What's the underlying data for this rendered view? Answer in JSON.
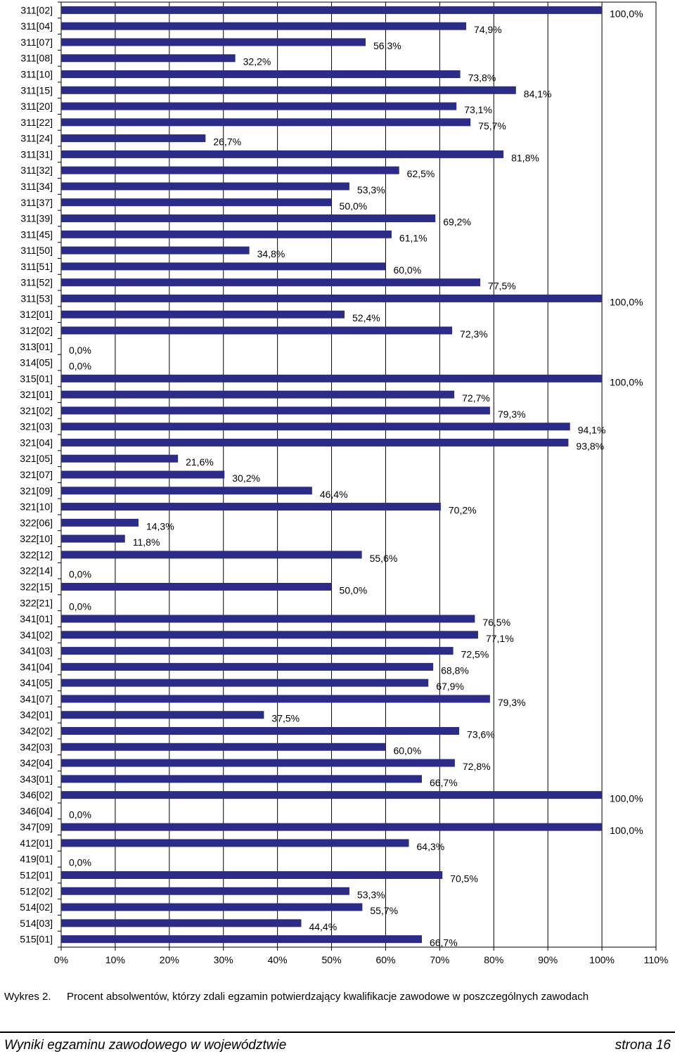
{
  "chart_data": {
    "type": "bar",
    "orientation": "horizontal",
    "categories": [
      "311[02]",
      "311[04]",
      "311[07]",
      "311[08]",
      "311[10]",
      "311[15]",
      "311[20]",
      "311[22]",
      "311[24]",
      "311[31]",
      "311[32]",
      "311[34]",
      "311[37]",
      "311[39]",
      "311[45]",
      "311[50]",
      "311[51]",
      "311[52]",
      "311[53]",
      "312[01]",
      "312[02]",
      "313[01]",
      "314[05]",
      "315[01]",
      "321[01]",
      "321[02]",
      "321[03]",
      "321[04]",
      "321[05]",
      "321[07]",
      "321[09]",
      "321[10]",
      "322[06]",
      "322[10]",
      "322[12]",
      "322[14]",
      "322[15]",
      "322[21]",
      "341[01]",
      "341[02]",
      "341[03]",
      "341[04]",
      "341[05]",
      "341[07]",
      "342[01]",
      "342[02]",
      "342[03]",
      "342[04]",
      "343[01]",
      "346[02]",
      "346[04]",
      "347[09]",
      "412[01]",
      "419[01]",
      "512[01]",
      "512[02]",
      "514[02]",
      "514[03]",
      "515[01]"
    ],
    "values": [
      100.0,
      74.9,
      56.3,
      32.2,
      73.8,
      84.1,
      73.1,
      75.7,
      26.7,
      81.8,
      62.5,
      53.3,
      50.0,
      69.2,
      61.1,
      34.8,
      60.0,
      77.5,
      100.0,
      52.4,
      72.3,
      0.0,
      0.0,
      100.0,
      72.7,
      79.3,
      94.1,
      93.8,
      21.6,
      30.2,
      46.4,
      70.2,
      14.3,
      11.8,
      55.6,
      0.0,
      50.0,
      0.0,
      76.5,
      77.1,
      72.5,
      68.8,
      67.9,
      79.3,
      37.5,
      73.6,
      60.0,
      72.8,
      66.7,
      100.0,
      0.0,
      100.0,
      64.3,
      0.0,
      70.5,
      53.3,
      55.7,
      44.4,
      66.7
    ],
    "data_labels": [
      "100,0%",
      "74,9%",
      "56,3%",
      "32,2%",
      "73,8%",
      "84,1%",
      "73,1%",
      "75,7%",
      "26,7%",
      "81,8%",
      "62,5%",
      "53,3%",
      "50,0%",
      "69,2%",
      "61,1%",
      "34,8%",
      "60,0%",
      "77,5%",
      "100,0%",
      "52,4%",
      "72,3%",
      "0,0%",
      "0,0%",
      "100,0%",
      "72,7%",
      "79,3%",
      "94,1%",
      "93,8%",
      "21,6%",
      "30,2%",
      "46,4%",
      "70,2%",
      "14,3%",
      "11,8%",
      "55,6%",
      "0,0%",
      "50,0%",
      "0,0%",
      "76,5%",
      "77,1%",
      "72,5%",
      "68,8%",
      "67,9%",
      "79,3%",
      "37,5%",
      "73,6%",
      "60,0%",
      "72,8%",
      "66,7%",
      "100,0%",
      "0,0%",
      "100,0%",
      "64,3%",
      "0,0%",
      "70,5%",
      "53,3%",
      "55,7%",
      "44,4%",
      "66,7%"
    ],
    "xlim": [
      0,
      110
    ],
    "x_ticks": [
      "0%",
      "10%",
      "20%",
      "30%",
      "40%",
      "50%",
      "60%",
      "70%",
      "80%",
      "90%",
      "100%",
      "110%"
    ],
    "grid": "vertical",
    "bar_color": "#2b2b8a",
    "title": "",
    "xlabel": "",
    "ylabel": ""
  },
  "caption": {
    "label": "Wykres 2.",
    "text": "Procent absolwentów, którzy zdali egzamin potwierdzający kwalifikacje zawodowe w poszczególnych zawodach"
  },
  "footer": {
    "title": "Wyniki egzaminu zawodowego w województwie",
    "page": "strona 16"
  }
}
